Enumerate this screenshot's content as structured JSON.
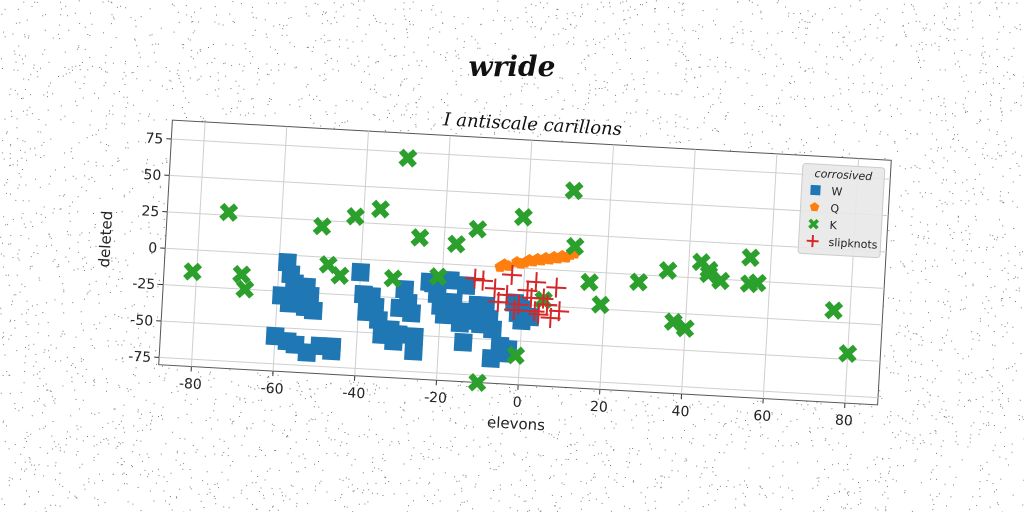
{
  "figure": {
    "suptitle": "wride"
  },
  "chart_data": {
    "type": "scatter",
    "title": "I antiscale carillons",
    "xlabel": "elevons",
    "ylabel": "deleted",
    "xlim": [
      -88,
      88
    ],
    "ylim": [
      -80,
      88
    ],
    "xticks": [
      -80,
      -60,
      -40,
      -20,
      0,
      20,
      40,
      60,
      80
    ],
    "yticks": [
      -75,
      -50,
      -25,
      0,
      25,
      50,
      75
    ],
    "grid": true,
    "legend": {
      "title": "corrosived",
      "position": "upper right"
    },
    "series": [
      {
        "name": "W",
        "marker": "square",
        "color": "#1f77b4",
        "points": [
          [
            -58,
            -5
          ],
          [
            -57,
            -13
          ],
          [
            -56,
            -19
          ],
          [
            -55,
            -24
          ],
          [
            -54,
            -29
          ],
          [
            -53,
            -21
          ],
          [
            -53,
            -35
          ],
          [
            -51,
            -37
          ],
          [
            -52,
            -27
          ],
          [
            -59,
            -28
          ],
          [
            -57,
            -33
          ],
          [
            -60,
            -56
          ],
          [
            -57,
            -59
          ],
          [
            -55,
            -61
          ],
          [
            -52,
            -66
          ],
          [
            -49,
            -61
          ],
          [
            -46,
            -61
          ],
          [
            -46,
            -64
          ],
          [
            -40,
            -9
          ],
          [
            -39,
            -24
          ],
          [
            -38,
            -36
          ],
          [
            -37,
            -25
          ],
          [
            -36,
            -32
          ],
          [
            -35,
            -41
          ],
          [
            -34,
            -51
          ],
          [
            -32,
            -47
          ],
          [
            -31,
            -55
          ],
          [
            -30,
            -50
          ],
          [
            -30,
            -32
          ],
          [
            -29,
            -19
          ],
          [
            -28,
            -28
          ],
          [
            -27,
            -35
          ],
          [
            -26,
            -51
          ],
          [
            -26,
            -61
          ],
          [
            -23,
            -13
          ],
          [
            -22,
            -14
          ],
          [
            -21,
            -21
          ],
          [
            -20,
            -29
          ],
          [
            -19,
            -35
          ],
          [
            -18,
            -11
          ],
          [
            -17,
            -26
          ],
          [
            -15,
            -32
          ],
          [
            -15,
            -40
          ],
          [
            -14,
            -14
          ],
          [
            -14,
            -53
          ],
          [
            -13,
            -35
          ],
          [
            -12,
            -38
          ],
          [
            -11,
            -27
          ],
          [
            -10,
            -40
          ],
          [
            -9,
            -27
          ],
          [
            -8,
            -36
          ],
          [
            -7,
            -43
          ],
          [
            -7,
            -63
          ],
          [
            -5,
            -54
          ],
          [
            -4,
            -59
          ],
          [
            -3,
            -56
          ],
          [
            -2,
            -24
          ],
          [
            -1,
            -26
          ],
          [
            -1,
            -31
          ],
          [
            0,
            -28
          ],
          [
            0,
            -36
          ],
          [
            2,
            -33
          ]
        ]
      },
      {
        "name": "Q",
        "marker": "pentagon",
        "color": "#ff7f0e",
        "points": [
          [
            -6,
            0
          ],
          [
            -5,
            2
          ],
          [
            -4,
            1
          ],
          [
            -2,
            4
          ],
          [
            -1,
            3
          ],
          [
            0,
            4
          ],
          [
            1,
            6
          ],
          [
            2,
            5
          ],
          [
            3,
            7
          ],
          [
            4,
            6
          ],
          [
            5,
            8
          ],
          [
            6,
            7
          ],
          [
            7,
            9
          ],
          [
            8,
            8
          ],
          [
            9,
            10
          ],
          [
            10,
            9
          ],
          [
            11,
            11
          ],
          [
            12,
            12
          ]
        ]
      },
      {
        "name": "K",
        "marker": "x",
        "color": "#2ca02c",
        "points": [
          [
            -81,
            -15
          ],
          [
            -73,
            27
          ],
          [
            -69,
            -15
          ],
          [
            -68,
            -25
          ],
          [
            -50,
            21
          ],
          [
            -48,
            -5
          ],
          [
            -45,
            -12
          ],
          [
            -42,
            29
          ],
          [
            -36,
            35
          ],
          [
            -32,
            -12
          ],
          [
            -30,
            71
          ],
          [
            -26,
            17
          ],
          [
            -21,
            -9
          ],
          [
            -17,
            14
          ],
          [
            -12,
            25
          ],
          [
            -10,
            -80
          ],
          [
            -1,
            35
          ],
          [
            -1,
            -60
          ],
          [
            5,
            -21
          ],
          [
            11,
            55
          ],
          [
            12,
            17
          ],
          [
            16,
            -7
          ],
          [
            19,
            -22
          ],
          [
            28,
            -5
          ],
          [
            35,
            4
          ],
          [
            37,
            -31
          ],
          [
            40,
            -35
          ],
          [
            43,
            11
          ],
          [
            45,
            6
          ],
          [
            45,
            3
          ],
          [
            48,
            -1
          ],
          [
            55,
            -2
          ],
          [
            55,
            16
          ],
          [
            57,
            -1
          ],
          [
            76,
            -17
          ],
          [
            80,
            -46
          ]
        ]
      },
      {
        "name": "slipknots",
        "marker": "plus",
        "color": "#d62728",
        "points": [
          [
            -12,
            -9
          ],
          [
            -10,
            -10
          ],
          [
            -7,
            -15
          ],
          [
            -6,
            -24
          ],
          [
            -4,
            -19
          ],
          [
            -2,
            -29
          ],
          [
            -1,
            -25
          ],
          [
            1,
            -15
          ],
          [
            2,
            -20
          ],
          [
            3,
            -29
          ],
          [
            4,
            -31
          ],
          [
            5,
            -20
          ],
          [
            6,
            -24
          ],
          [
            7,
            -33
          ],
          [
            8,
            -12
          ],
          [
            9,
            -28
          ],
          [
            3,
            -9
          ],
          [
            -3,
            -5
          ]
        ]
      }
    ]
  }
}
